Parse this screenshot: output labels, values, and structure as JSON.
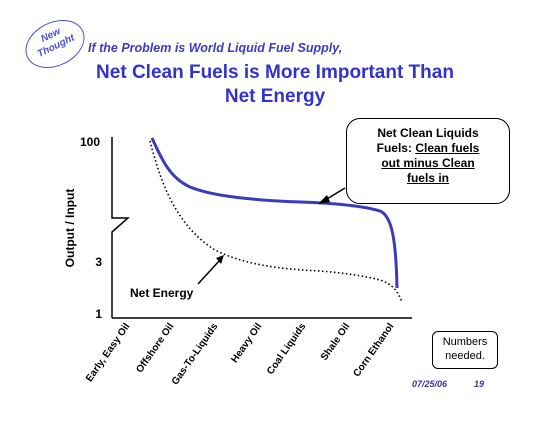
{
  "slide": {
    "badge": [
      "New",
      "Thought"
    ],
    "title_line1": "If the Problem is World Liquid Fuel Supply,",
    "title_line2": "Net Clean Fuels is More Important Than",
    "title_line3": "Net Energy",
    "callout": {
      "line1": "Net Clean Liquids",
      "line2_prefix": "Fuels: ",
      "line2_underlined": "Clean fuels",
      "line3": "out minus Clean",
      "line4": "fuels in"
    },
    "numbers_note": [
      "Numbers",
      "needed."
    ],
    "date": "07/25/06",
    "page_number": "19"
  },
  "chart_data": {
    "type": "line",
    "ylabel": "Output / Input",
    "yticks": [
      "100",
      "3",
      "1"
    ],
    "y_axis_break": true,
    "categories": [
      "Early, Easy Oil",
      "Offshore Oil",
      "Gas-To-Liquids",
      "Heavy Oil",
      "Coal Liquids",
      "Shale Oil",
      "Corn Ethanol"
    ],
    "series": [
      {
        "name": "Net Clean Liquids Fuels",
        "style": "solid",
        "color": "#3b3bbf"
      },
      {
        "name": "Net Energy",
        "style": "dotted",
        "color": "#000000"
      }
    ]
  }
}
